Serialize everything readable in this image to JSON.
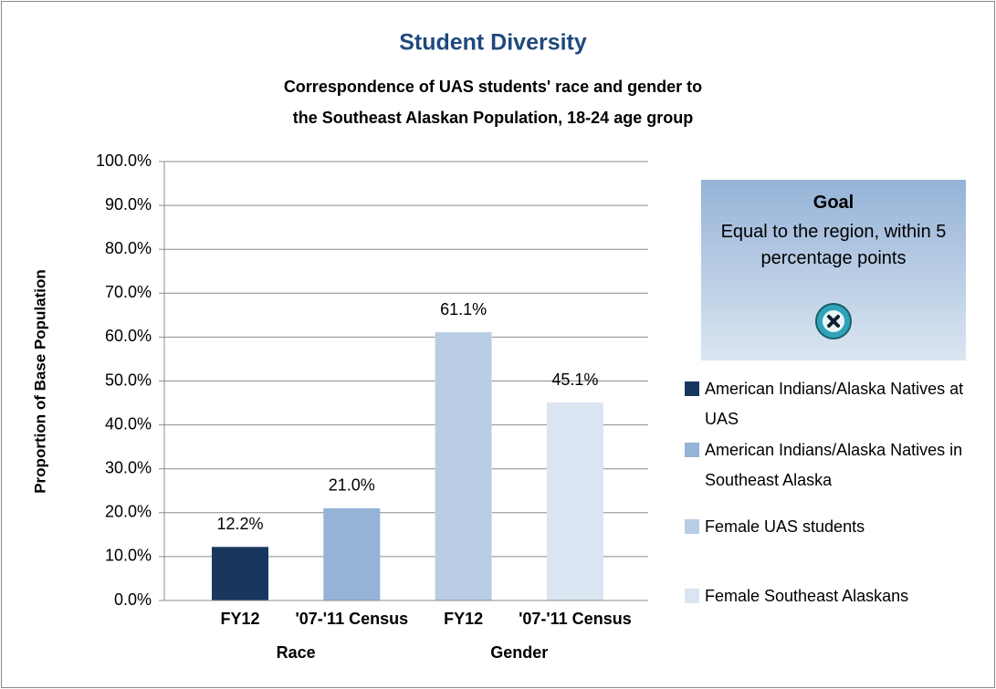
{
  "chart_data": {
    "type": "bar",
    "title": "Student Diversity",
    "subtitle": [
      "Correspondence of UAS students' race and gender to",
      "the Southeast Alaskan Population, 18-24 age group"
    ],
    "y_label": "Proportion of Base Population",
    "categories": [
      "FY12",
      "'07-'11 Census",
      "FY12",
      "'07-'11 Census"
    ],
    "group_labels": [
      "Race",
      "Gender"
    ],
    "series": [
      {
        "name": "American Indians/Alaska Natives at UAS",
        "color": "#17375e",
        "values": [
          12.2,
          null,
          null,
          null
        ],
        "value_labels": [
          "12.2%",
          null,
          null,
          null
        ]
      },
      {
        "name": "American Indians/Alaska Natives in Southeast Alaska",
        "color": "#95b3d7",
        "values": [
          null,
          21.0,
          null,
          null
        ],
        "value_labels": [
          null,
          "21.0%",
          null,
          null
        ]
      },
      {
        "name": "Female UAS students",
        "color": "#b9cde5",
        "values": [
          null,
          null,
          61.1,
          null
        ],
        "value_labels": [
          null,
          null,
          "61.1%",
          null
        ]
      },
      {
        "name": "Female Southeast Alaskans",
        "color": "#dbe5f1",
        "values": [
          null,
          null,
          null,
          45.1
        ],
        "value_labels": [
          null,
          null,
          null,
          "45.1%"
        ]
      }
    ],
    "ylim": [
      0,
      100
    ],
    "yticks": [
      {
        "value": 0,
        "label": "0.0%"
      },
      {
        "value": 10,
        "label": "10.0%"
      },
      {
        "value": 20,
        "label": "20.0%"
      },
      {
        "value": 30,
        "label": "30.0%"
      },
      {
        "value": 40,
        "label": "40.0%"
      },
      {
        "value": 50,
        "label": "50.0%"
      },
      {
        "value": 60,
        "label": "60.0%"
      },
      {
        "value": 70,
        "label": "70.0%"
      },
      {
        "value": 80,
        "label": "80.0%"
      },
      {
        "value": 90,
        "label": "90.0%"
      },
      {
        "value": 100,
        "label": "100.0%"
      }
    ],
    "grid": true,
    "goal": {
      "title": "Goal",
      "text": "Equal to the region, within 5 percentage points"
    }
  }
}
